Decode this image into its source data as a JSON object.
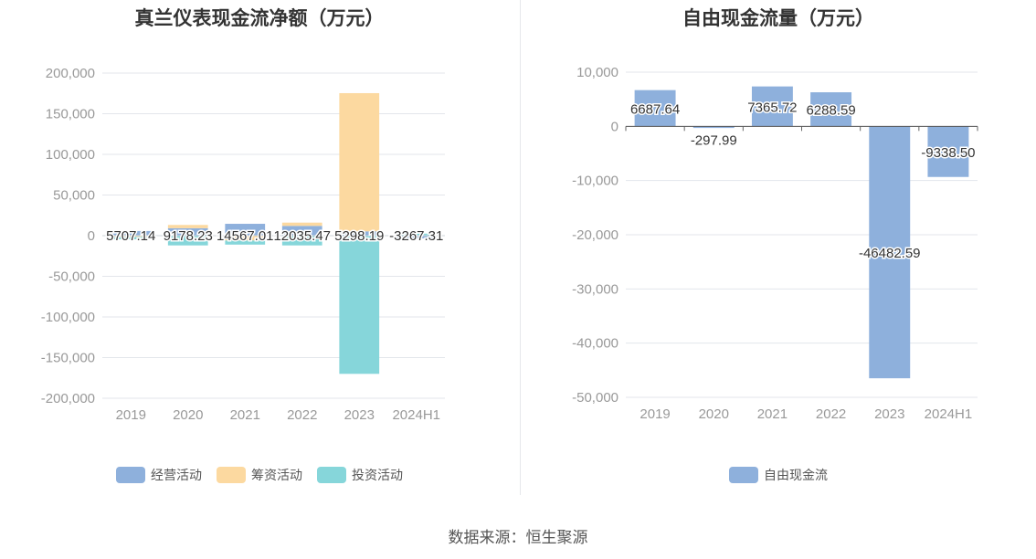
{
  "source": "数据来源：恒生聚源",
  "chart_data": [
    {
      "type": "bar",
      "stacked": true,
      "title": "真兰仪表现金流净额（万元）",
      "categories": [
        "2019",
        "2020",
        "2021",
        "2022",
        "2023",
        "2024H1"
      ],
      "yticks": [
        "200,000",
        "150,000",
        "100,000",
        "50,000",
        "0",
        "-50,000",
        "-100,000",
        "-150,000",
        "-200,000"
      ],
      "ylim": [
        -200000,
        200000
      ],
      "grid": true,
      "legend_position": "bottom",
      "series": [
        {
          "name": "经营活动",
          "color": "#8eb0dc",
          "values": [
            5707.14,
            9178.23,
            14567.01,
            12035.47,
            5298.19,
            -3267.31
          ]
        },
        {
          "name": "筹资活动",
          "color": "#fcd9a0",
          "values": [
            -1500,
            4000,
            -6000,
            4000,
            170000,
            500
          ]
        },
        {
          "name": "投资活动",
          "color": "#86d6da",
          "values": [
            -3000,
            -12000,
            -5000,
            -12000,
            -170000,
            2000
          ]
        }
      ],
      "data_labels": [
        "5707.14",
        "9178.23",
        "14567.01",
        "12035.47",
        "5298.19",
        "-3267.31"
      ]
    },
    {
      "type": "bar",
      "title": "自由现金流量（万元）",
      "categories": [
        "2019",
        "2020",
        "2021",
        "2022",
        "2023",
        "2024H1"
      ],
      "yticks": [
        "10,000",
        "0",
        "-10,000",
        "-20,000",
        "-30,000",
        "-40,000",
        "-50,000"
      ],
      "ylim": [
        -50000,
        10000
      ],
      "grid": true,
      "legend_position": "bottom",
      "series": [
        {
          "name": "自由现金流",
          "color": "#8eb0dc",
          "values": [
            6687.64,
            -297.99,
            7365.72,
            6288.59,
            -46482.59,
            -9338.5
          ]
        }
      ],
      "data_labels": [
        "6687.64",
        "-297.99",
        "7365.72",
        "6288.59",
        "-46482.59",
        "-9338.50"
      ]
    }
  ]
}
